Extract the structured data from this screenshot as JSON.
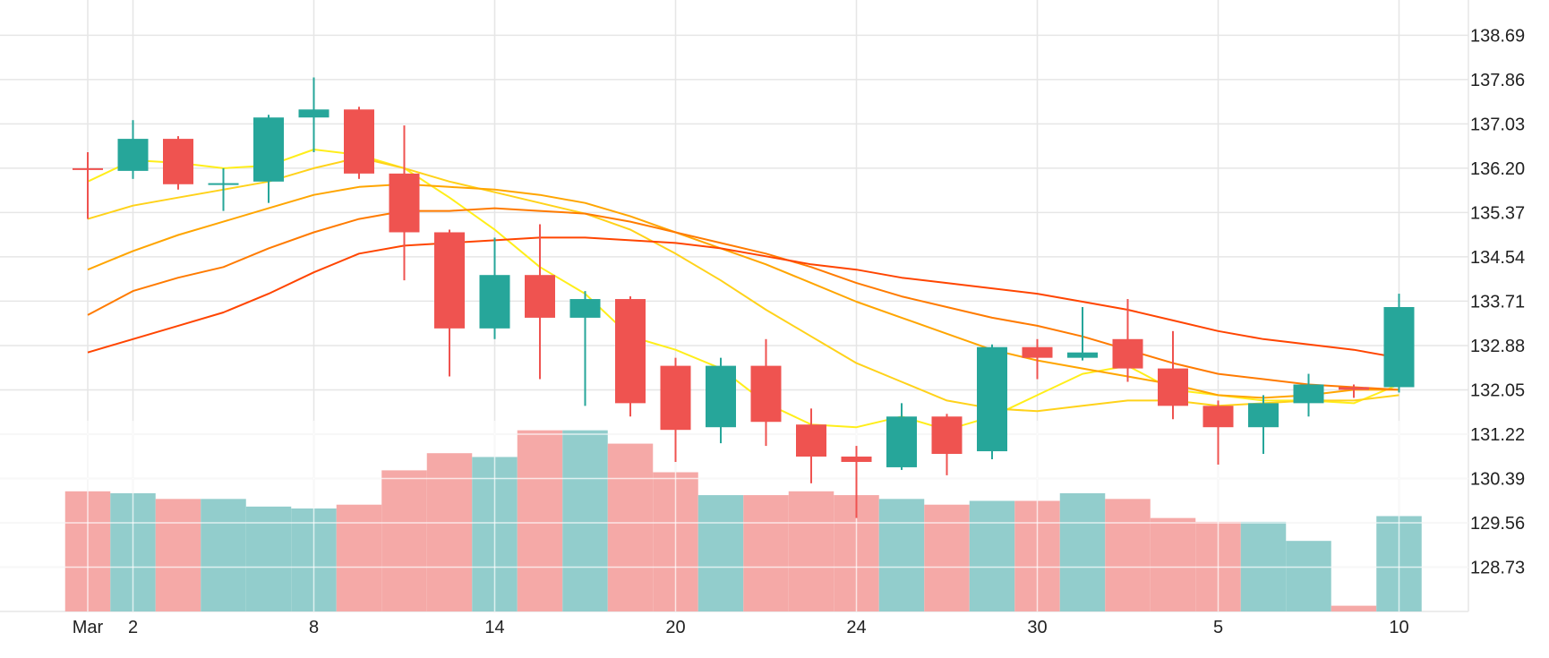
{
  "chart_data": {
    "type": "candlestick",
    "y_ticks": [
      "138.69",
      "137.86",
      "137.03",
      "136.20",
      "135.37",
      "134.54",
      "133.71",
      "132.88",
      "132.05",
      "131.22",
      "130.39",
      "129.56",
      "128.73"
    ],
    "y_tick_values": [
      138.69,
      137.86,
      137.03,
      136.2,
      135.37,
      134.54,
      133.71,
      132.88,
      132.05,
      131.22,
      130.39,
      129.56,
      128.73
    ],
    "ylim": [
      127.9,
      139.35
    ],
    "x_tick_labels": [
      {
        "label": "Mar",
        "index": 0
      },
      {
        "label": "2",
        "index": 1
      },
      {
        "label": "8",
        "index": 5
      },
      {
        "label": "14",
        "index": 9
      },
      {
        "label": "20",
        "index": 13
      },
      {
        "label": "24",
        "index": 17
      },
      {
        "label": "30",
        "index": 21
      },
      {
        "label": "5",
        "index": 25
      },
      {
        "label": "10",
        "index": 29
      }
    ],
    "colors": {
      "up": "#26a69a",
      "down": "#ef5350",
      "volume_up": "#92cdcc",
      "volume_down": "#f5a9a7",
      "grid": "#e6e6e6",
      "text": "#222222"
    },
    "candles": [
      {
        "o": 136.2,
        "h": 136.5,
        "l": 135.25,
        "c": 136.18
      },
      {
        "o": 136.15,
        "h": 137.1,
        "l": 136.0,
        "c": 136.75
      },
      {
        "o": 136.75,
        "h": 136.8,
        "l": 135.8,
        "c": 135.9
      },
      {
        "o": 135.9,
        "h": 136.2,
        "l": 135.4,
        "c": 135.92
      },
      {
        "o": 135.95,
        "h": 137.2,
        "l": 135.55,
        "c": 137.15
      },
      {
        "o": 137.15,
        "h": 137.9,
        "l": 136.5,
        "c": 137.3
      },
      {
        "o": 137.3,
        "h": 137.35,
        "l": 136.0,
        "c": 136.1
      },
      {
        "o": 136.1,
        "h": 137.0,
        "l": 134.1,
        "c": 135.0
      },
      {
        "o": 135.0,
        "h": 135.05,
        "l": 132.3,
        "c": 133.2
      },
      {
        "o": 133.2,
        "h": 134.9,
        "l": 133.0,
        "c": 134.2
      },
      {
        "o": 134.2,
        "h": 135.15,
        "l": 132.25,
        "c": 133.4
      },
      {
        "o": 133.4,
        "h": 133.9,
        "l": 131.75,
        "c": 133.75
      },
      {
        "o": 133.75,
        "h": 133.8,
        "l": 131.55,
        "c": 131.8
      },
      {
        "o": 132.5,
        "h": 132.65,
        "l": 130.7,
        "c": 131.3
      },
      {
        "o": 131.35,
        "h": 132.65,
        "l": 131.05,
        "c": 132.5
      },
      {
        "o": 132.5,
        "h": 133.0,
        "l": 131.0,
        "c": 131.45
      },
      {
        "o": 131.4,
        "h": 131.7,
        "l": 130.3,
        "c": 130.8
      },
      {
        "o": 130.8,
        "h": 131.0,
        "l": 129.65,
        "c": 130.7
      },
      {
        "o": 130.6,
        "h": 131.8,
        "l": 130.55,
        "c": 131.55
      },
      {
        "o": 131.55,
        "h": 131.6,
        "l": 130.45,
        "c": 130.85
      },
      {
        "o": 130.9,
        "h": 132.9,
        "l": 130.75,
        "c": 132.85
      },
      {
        "o": 132.85,
        "h": 133.0,
        "l": 132.25,
        "c": 132.65
      },
      {
        "o": 132.65,
        "h": 133.6,
        "l": 132.6,
        "c": 132.75
      },
      {
        "o": 133.0,
        "h": 133.75,
        "l": 132.2,
        "c": 132.45
      },
      {
        "o": 132.45,
        "h": 133.15,
        "l": 131.5,
        "c": 131.75
      },
      {
        "o": 131.75,
        "h": 131.85,
        "l": 130.65,
        "c": 131.35
      },
      {
        "o": 131.35,
        "h": 131.95,
        "l": 130.85,
        "c": 131.8
      },
      {
        "o": 131.8,
        "h": 132.35,
        "l": 131.55,
        "c": 132.15
      },
      {
        "o": 132.1,
        "h": 132.15,
        "l": 131.9,
        "c": 132.05
      },
      {
        "o": 132.1,
        "h": 133.85,
        "l": 132.0,
        "c": 133.6
      }
    ],
    "volume": [
      0.63,
      0.62,
      0.59,
      0.59,
      0.55,
      0.54,
      0.56,
      0.74,
      0.83,
      0.81,
      0.95,
      0.95,
      0.88,
      0.73,
      0.61,
      0.61,
      0.63,
      0.61,
      0.59,
      0.56,
      0.58,
      0.58,
      0.62,
      0.59,
      0.49,
      0.47,
      0.47,
      0.37,
      0.03,
      0.5
    ],
    "volume_up": [
      false,
      true,
      false,
      true,
      true,
      true,
      false,
      false,
      false,
      true,
      false,
      true,
      false,
      false,
      true,
      false,
      false,
      false,
      true,
      false,
      true,
      false,
      true,
      false,
      false,
      false,
      true,
      true,
      false,
      true
    ],
    "ma_lines": [
      {
        "color": "#ffee1a",
        "values": [
          135.95,
          136.35,
          136.3,
          136.2,
          136.25,
          136.55,
          136.45,
          136.2,
          135.65,
          135.05,
          134.35,
          133.85,
          133.05,
          132.8,
          132.45,
          131.8,
          131.4,
          131.35,
          131.55,
          131.3,
          131.55,
          131.95,
          132.35,
          132.5,
          132.05,
          131.95,
          131.85,
          131.85,
          131.8,
          132.15
        ]
      },
      {
        "color": "#ffd21a",
        "values": [
          135.25,
          135.5,
          135.65,
          135.8,
          135.95,
          136.2,
          136.4,
          136.2,
          135.95,
          135.75,
          135.55,
          135.35,
          135.05,
          134.6,
          134.1,
          133.55,
          133.05,
          132.55,
          132.2,
          131.85,
          131.7,
          131.65,
          131.75,
          131.85,
          131.85,
          131.75,
          131.8,
          131.85,
          131.85,
          131.95
        ]
      },
      {
        "color": "#ffa500",
        "values": [
          134.3,
          134.65,
          134.95,
          135.2,
          135.45,
          135.7,
          135.85,
          135.9,
          135.85,
          135.8,
          135.7,
          135.55,
          135.3,
          135.0,
          134.7,
          134.4,
          134.05,
          133.7,
          133.4,
          133.1,
          132.8,
          132.6,
          132.45,
          132.3,
          132.15,
          131.95,
          131.9,
          131.95,
          132.05,
          132.05
        ]
      },
      {
        "color": "#ff7b00",
        "values": [
          133.45,
          133.9,
          134.15,
          134.35,
          134.7,
          135.0,
          135.25,
          135.4,
          135.4,
          135.45,
          135.4,
          135.35,
          135.2,
          135.0,
          134.8,
          134.6,
          134.35,
          134.05,
          133.8,
          133.6,
          133.4,
          133.25,
          133.05,
          132.8,
          132.55,
          132.35,
          132.25,
          132.15,
          132.1,
          132.05
        ]
      },
      {
        "color": "#ff4500",
        "values": [
          132.75,
          133.0,
          133.25,
          133.5,
          133.85,
          134.25,
          134.6,
          134.75,
          134.8,
          134.85,
          134.9,
          134.9,
          134.85,
          134.8,
          134.7,
          134.55,
          134.4,
          134.3,
          134.15,
          134.05,
          133.95,
          133.85,
          133.7,
          133.55,
          133.35,
          133.15,
          133.0,
          132.9,
          132.8,
          132.65
        ]
      }
    ]
  }
}
